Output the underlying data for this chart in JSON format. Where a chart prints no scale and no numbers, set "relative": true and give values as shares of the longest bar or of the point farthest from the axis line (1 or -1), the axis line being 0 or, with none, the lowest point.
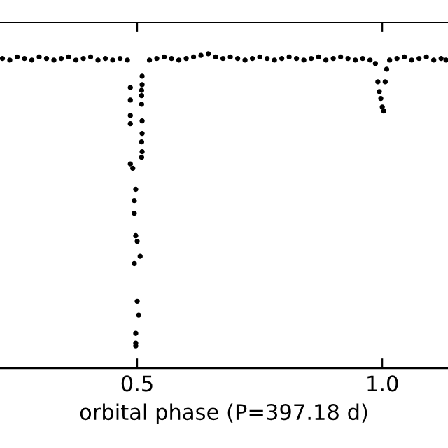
{
  "chart_data": {
    "type": "scatter",
    "relative": true,
    "xlabel": "orbital phase (P=397.18 d)",
    "xlim": [
      0.22,
      1.134
    ],
    "xticks": [
      0.5,
      {
        "value": 1.0,
        "label": "1.0"
      }
    ],
    "marker": "circle",
    "grid": false,
    "legend": false,
    "tick_labels": "x",
    "series": [
      {
        "color": "#000000",
        "x": [
          0.225,
          0.24,
          0.255,
          0.27,
          0.285,
          0.3,
          0.315,
          0.33,
          0.345,
          0.36,
          0.375,
          0.39,
          0.405,
          0.42,
          0.435,
          0.45,
          0.465,
          0.48,
          0.525,
          0.54,
          0.555,
          0.57,
          0.585,
          0.6,
          0.615,
          0.63,
          0.645,
          0.66,
          0.675,
          0.69,
          0.705,
          0.72,
          0.735,
          0.75,
          0.765,
          0.78,
          0.795,
          0.81,
          0.825,
          0.84,
          0.855,
          0.87,
          0.885,
          0.9,
          0.915,
          0.93,
          0.945,
          0.96,
          0.975,
          1.015,
          1.03,
          1.045,
          1.06,
          1.075,
          1.09,
          1.105,
          1.12,
          1.13
        ],
        "values": [
          0.985,
          0.98,
          0.99,
          0.985,
          0.98,
          0.99,
          0.985,
          0.98,
          0.985,
          0.99,
          0.98,
          0.985,
          0.99,
          0.98,
          0.985,
          0.98,
          0.985,
          0.98,
          0.98,
          0.985,
          0.99,
          0.985,
          0.98,
          0.985,
          0.99,
          0.995,
          1.0,
          0.99,
          0.985,
          0.99,
          0.985,
          0.98,
          0.985,
          0.99,
          0.985,
          0.98,
          0.985,
          0.99,
          0.985,
          0.98,
          0.985,
          0.99,
          0.98,
          0.985,
          0.99,
          0.985,
          0.98,
          0.985,
          0.98,
          0.98,
          0.985,
          0.99,
          0.98,
          0.985,
          0.99,
          0.98,
          0.985,
          0.98
        ]
      },
      {
        "color": "#000000",
        "x": [
          0.486,
          0.486,
          0.486,
          0.486,
          0.486,
          0.51,
          0.51,
          0.509,
          0.509,
          0.509,
          0.51,
          0.51,
          0.509,
          0.51,
          0.509,
          0.491,
          0.497,
          0.494,
          0.494,
          0.497,
          0.5,
          0.506,
          0.494,
          0.5,
          0.503,
          0.497,
          0.497,
          0.497
        ],
        "values": [
          0.893,
          0.853,
          0.804,
          0.778,
          0.65,
          0.929,
          0.902,
          0.884,
          0.867,
          0.84,
          0.787,
          0.747,
          0.72,
          0.689,
          0.671,
          0.636,
          0.569,
          0.533,
          0.493,
          0.422,
          0.404,
          0.356,
          0.333,
          0.213,
          0.169,
          0.111,
          0.08,
          0.071
        ]
      },
      {
        "color": "#000000",
        "x": [
          0.986,
          1.009,
          0.991,
          1.006,
          0.994,
          0.997,
          1.0,
          1.003
        ],
        "values": [
          0.969,
          0.951,
          0.911,
          0.911,
          0.88,
          0.858,
          0.831,
          0.818
        ]
      }
    ]
  }
}
